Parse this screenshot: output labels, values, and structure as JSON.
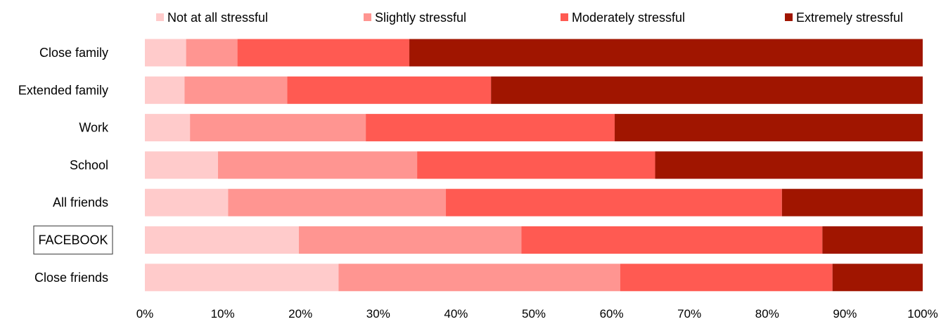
{
  "chart_data": {
    "type": "bar",
    "orientation": "horizontal",
    "stacked": "percent",
    "categories": [
      "Close family",
      "Extended family",
      "Work",
      "School",
      "All friends",
      "FACEBOOK",
      "Close friends"
    ],
    "highlighted_category": "FACEBOOK",
    "series": [
      {
        "name": "Not at all stressful",
        "color": "#FFCBCB",
        "values": [
          5.3,
          5.1,
          5.8,
          9.4,
          10.7,
          19.8,
          24.9
        ]
      },
      {
        "name": "Slightly stressful",
        "color": "#FF9591",
        "values": [
          6.6,
          13.2,
          22.6,
          25.6,
          28.0,
          28.6,
          36.2
        ]
      },
      {
        "name": "Moderately stressful",
        "color": "#FF5A52",
        "values": [
          22.1,
          26.2,
          32.0,
          30.6,
          43.2,
          38.7,
          27.3
        ]
      },
      {
        "name": "Extremely stressful",
        "color": "#A01500",
        "values": [
          66.0,
          55.5,
          39.6,
          34.4,
          18.1,
          12.9,
          11.6
        ]
      }
    ],
    "xlim": [
      0,
      100
    ],
    "x_ticks": [
      "0%",
      "10%",
      "20%",
      "30%",
      "40%",
      "50%",
      "60%",
      "70%",
      "80%",
      "90%",
      "100%"
    ],
    "legend_position": "top",
    "grid": false,
    "title": "",
    "xlabel": "",
    "ylabel": ""
  }
}
